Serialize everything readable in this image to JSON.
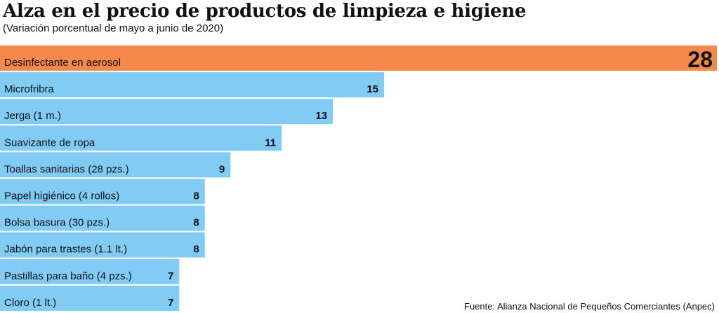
{
  "header": {
    "title": "Alza en el precio de productos de limpieza e higiene",
    "subtitle": "(Variación porcentual de mayo a junio de 2020)"
  },
  "footer": {
    "source": "Fuente: Alianza Nacional de Pequeños Comerciantes (Anpec)"
  },
  "colors": {
    "highlight": "#f5894a",
    "bar": "#80ccf5",
    "text": "#111111"
  },
  "chart_data": {
    "type": "bar",
    "orientation": "horizontal",
    "categories": [
      "Desinfectante en aerosol",
      "Microfribra",
      "Jerga (1 m.)",
      "Suavizante de ropa",
      "Toallas sanitarias (28 pzs.)",
      "Papel higiénico (4 rollos)",
      "Bolsa basura (30 pzs.)",
      "Jabón para trastes (1.1 lt.)",
      "Pastillas para baño (4 pzs.)",
      "Cloro (1 lt.)"
    ],
    "values": [
      28,
      15,
      13,
      11,
      9,
      8,
      8,
      8,
      7,
      7
    ],
    "highlight_index": 0,
    "title": "Alza en el precio de productos de limpieza e higiene",
    "subtitle": "(Variación porcentual de mayo a junio de 2020)",
    "xlim": [
      0,
      28
    ],
    "grid": false,
    "legend": "none"
  }
}
